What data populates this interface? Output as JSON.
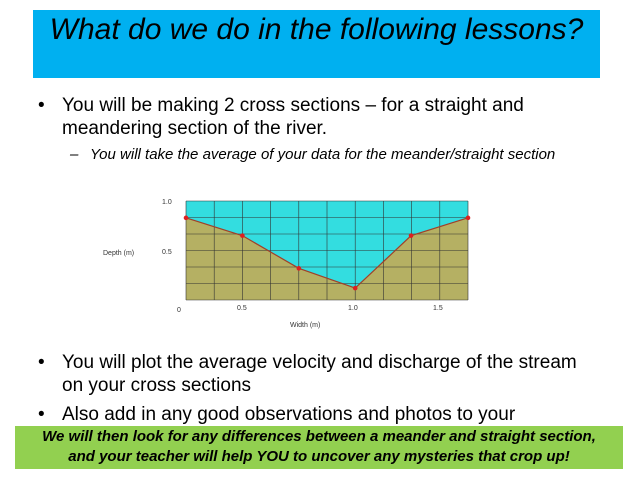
{
  "title": "What do we do in the following lessons?",
  "bullets": [
    {
      "text": "You will be making 2 cross sections – for a straight and meandering section of the river."
    },
    {
      "text": "You will plot the average velocity and discharge of the stream on your cross sections"
    },
    {
      "text": "Also add in any good observations and photos to your"
    }
  ],
  "sub_bullet": "You will take the average of your data for the meander/straight section",
  "bullet_symbol": "•",
  "sub_symbol": "–",
  "footer": {
    "line1": "We will then look for any differences between a meander and straight section,",
    "line2": "and your teacher will help YOU to uncover any mysteries that crop up!"
  },
  "colors": {
    "title_band": "#00B0F0",
    "footer_band": "#92D050",
    "water": "#33DDE0",
    "bed": "#B5B063",
    "points": "#DD2020"
  },
  "chart_data": {
    "type": "area",
    "xlabel": "Width (m)",
    "ylabel": "Depth (m)",
    "x_ticks": [
      "0",
      "0.5",
      "1.0",
      "1.5"
    ],
    "y_ticks": [
      "0",
      "0.5",
      "1.0"
    ],
    "ylim": [
      0,
      1.0
    ],
    "grid": true,
    "x": [
      0,
      0.5,
      0.75,
      1.0,
      1.33,
      1.67
    ],
    "y": [
      0.83,
      0.65,
      0.32,
      0.12,
      0.65,
      0.83
    ]
  }
}
